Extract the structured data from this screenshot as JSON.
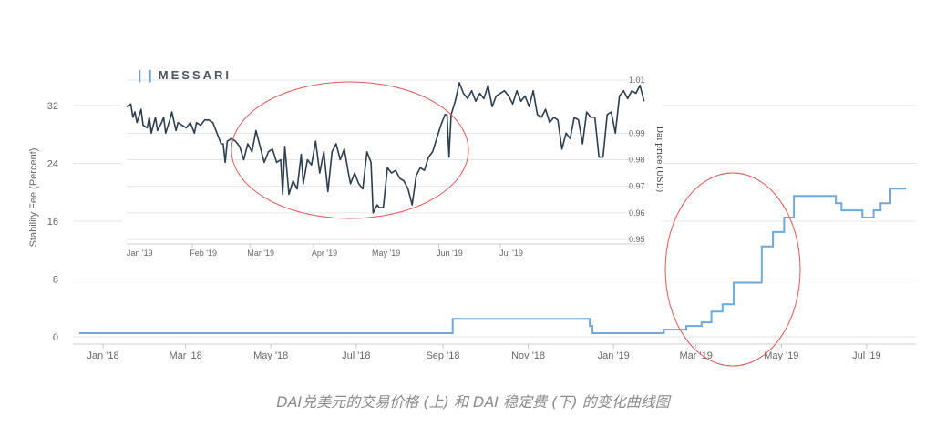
{
  "caption": "DAI兑美元的交易价格 (上) 和 DAI 稳定费 (下) 的变化曲线图",
  "logo": {
    "mark": "❘❙",
    "text": "MESSARI"
  },
  "colors": {
    "fee_line": "#6fa8dc",
    "price_line": "#2c3e50",
    "circle": "#e05555",
    "grid": "#e6e6e6",
    "tick_text": "#666666"
  },
  "chart_data": [
    {
      "type": "line",
      "title": "",
      "xlabel": "",
      "ylabel": "Stability Fee (Percent)",
      "ylim": [
        0,
        36
      ],
      "yticks": [
        0,
        8,
        16,
        24,
        32
      ],
      "grid": true,
      "x_tick_labels": [
        "Jan '18",
        "Mar '18",
        "May '18",
        "Jul '18",
        "Sep '18",
        "Nov '18",
        "Jan '19",
        "Mar '19",
        "May '19",
        "Jul '19"
      ],
      "series": [
        {
          "values": [
            [
              "2017-12-15",
              0.5
            ],
            [
              "2018-08-25",
              0.5
            ],
            [
              "2018-09-06",
              0.5
            ],
            [
              "2018-09-08",
              2.5
            ],
            [
              "2018-12-09",
              2.5
            ],
            [
              "2018-12-15",
              1.5
            ],
            [
              "2018-12-17",
              0.5
            ],
            [
              "2019-01-31",
              0.5
            ],
            [
              "2019-02-06",
              1.0
            ],
            [
              "2019-02-22",
              1.5
            ],
            [
              "2019-03-05",
              2.0
            ],
            [
              "2019-03-12",
              3.5
            ],
            [
              "2019-03-20",
              4.5
            ],
            [
              "2019-03-28",
              7.5
            ],
            [
              "2019-04-17",
              12.5
            ],
            [
              "2019-04-25",
              14.5
            ],
            [
              "2019-05-03",
              16.5
            ],
            [
              "2019-05-10",
              19.5
            ],
            [
              "2019-06-01",
              19.5
            ],
            [
              "2019-06-09",
              18.5
            ],
            [
              "2019-06-13",
              17.5
            ],
            [
              "2019-06-25",
              17.5
            ],
            [
              "2019-06-28",
              16.5
            ],
            [
              "2019-07-06",
              17.5
            ],
            [
              "2019-07-11",
              18.5
            ],
            [
              "2019-07-18",
              20.5
            ],
            [
              "2019-07-29",
              20.5
            ]
          ]
        }
      ]
    },
    {
      "type": "line",
      "title": "",
      "xlabel": "",
      "ylabel": "Dai price (USD)",
      "ylim": [
        0.947,
        1.012
      ],
      "yticks": [
        0.95,
        0.96,
        0.97,
        0.98,
        0.99,
        1.01
      ],
      "grid": true,
      "x_tick_labels": [
        "Jan '19",
        "Feb '19",
        "Mar '19",
        "Apr '19",
        "May '19",
        "Jun '19",
        "Jul '19"
      ],
      "series": [
        {
          "values": [
            [
              "2018-12-31",
              1.0
            ],
            [
              "2019-01-02",
              1.001
            ],
            [
              "2019-01-03",
              0.996
            ],
            [
              "2019-01-04",
              0.998
            ],
            [
              "2019-01-05",
              0.994
            ],
            [
              "2019-01-07",
              0.999
            ],
            [
              "2019-01-08",
              0.993
            ],
            [
              "2019-01-10",
              0.992
            ],
            [
              "2019-01-11",
              0.996
            ],
            [
              "2019-01-12",
              0.99
            ],
            [
              "2019-01-14",
              0.996
            ],
            [
              "2019-01-15",
              0.991
            ],
            [
              "2019-01-17",
              0.994
            ],
            [
              "2019-01-18",
              0.996
            ],
            [
              "2019-01-19",
              0.99
            ],
            [
              "2019-01-21",
              0.995
            ],
            [
              "2019-01-22",
              0.998
            ],
            [
              "2019-01-24",
              0.991
            ],
            [
              "2019-01-25",
              0.994
            ],
            [
              "2019-01-27",
              0.993
            ],
            [
              "2019-01-29",
              0.992
            ],
            [
              "2019-01-31",
              0.994
            ],
            [
              "2019-02-02",
              0.99
            ],
            [
              "2019-02-03",
              0.994
            ],
            [
              "2019-02-05",
              0.993
            ],
            [
              "2019-02-07",
              0.995
            ],
            [
              "2019-02-09",
              0.995
            ],
            [
              "2019-02-11",
              0.994
            ],
            [
              "2019-02-13",
              0.99
            ],
            [
              "2019-02-15",
              0.986
            ],
            [
              "2019-02-16",
              0.986
            ],
            [
              "2019-02-17",
              0.979
            ],
            [
              "2019-02-18",
              0.987
            ],
            [
              "2019-02-20",
              0.988
            ],
            [
              "2019-02-22",
              0.987
            ],
            [
              "2019-02-24",
              0.985
            ],
            [
              "2019-02-26",
              0.98
            ],
            [
              "2019-02-28",
              0.986
            ],
            [
              "2019-03-02",
              0.983
            ],
            [
              "2019-03-04",
              0.991
            ],
            [
              "2019-03-06",
              0.985
            ],
            [
              "2019-03-08",
              0.979
            ],
            [
              "2019-03-10",
              0.983
            ],
            [
              "2019-03-12",
              0.984
            ],
            [
              "2019-03-14",
              0.979
            ],
            [
              "2019-03-16",
              0.98
            ],
            [
              "2019-03-17",
              0.967
            ],
            [
              "2019-03-18",
              0.985
            ],
            [
              "2019-03-20",
              0.967
            ],
            [
              "2019-03-22",
              0.972
            ],
            [
              "2019-03-24",
              0.969
            ],
            [
              "2019-03-26",
              0.982
            ],
            [
              "2019-03-27",
              0.971
            ],
            [
              "2019-03-29",
              0.98
            ],
            [
              "2019-03-31",
              0.978
            ],
            [
              "2019-04-02",
              0.987
            ],
            [
              "2019-04-04",
              0.975
            ],
            [
              "2019-04-06",
              0.983
            ],
            [
              "2019-04-08",
              0.968
            ],
            [
              "2019-04-10",
              0.983
            ],
            [
              "2019-04-12",
              0.986
            ],
            [
              "2019-04-14",
              0.98
            ],
            [
              "2019-04-16",
              0.984
            ],
            [
              "2019-04-18",
              0.975
            ],
            [
              "2019-04-19",
              0.971
            ],
            [
              "2019-04-21",
              0.975
            ],
            [
              "2019-04-23",
              0.971
            ],
            [
              "2019-04-25",
              0.969
            ],
            [
              "2019-04-27",
              0.983
            ],
            [
              "2019-04-29",
              0.979
            ],
            [
              "2019-04-30",
              0.96
            ],
            [
              "2019-05-02",
              0.963
            ],
            [
              "2019-05-03",
              0.962
            ],
            [
              "2019-05-05",
              0.962
            ],
            [
              "2019-05-07",
              0.977
            ],
            [
              "2019-05-09",
              0.975
            ],
            [
              "2019-05-11",
              0.976
            ],
            [
              "2019-05-13",
              0.973
            ],
            [
              "2019-05-15",
              0.972
            ],
            [
              "2019-05-17",
              0.969
            ],
            [
              "2019-05-19",
              0.963
            ],
            [
              "2019-05-21",
              0.974
            ],
            [
              "2019-05-23",
              0.977
            ],
            [
              "2019-05-25",
              0.976
            ],
            [
              "2019-05-27",
              0.981
            ],
            [
              "2019-05-29",
              0.983
            ],
            [
              "2019-05-31",
              0.988
            ],
            [
              "2019-06-02",
              0.993
            ],
            [
              "2019-06-04",
              0.997
            ],
            [
              "2019-06-05",
              0.997
            ],
            [
              "2019-06-06",
              0.981
            ],
            [
              "2019-06-07",
              0.997
            ],
            [
              "2019-06-09",
              1.002
            ],
            [
              "2019-06-11",
              1.009
            ],
            [
              "2019-06-13",
              1.005
            ],
            [
              "2019-06-15",
              1.003
            ],
            [
              "2019-06-17",
              1.006
            ],
            [
              "2019-06-19",
              1.002
            ],
            [
              "2019-06-21",
              1.005
            ],
            [
              "2019-06-23",
              1.003
            ],
            [
              "2019-06-25",
              1.008
            ],
            [
              "2019-06-27",
              1.0
            ],
            [
              "2019-06-29",
              1.004
            ],
            [
              "2019-07-01",
              1.005
            ],
            [
              "2019-07-03",
              1.006
            ],
            [
              "2019-07-05",
              1.004
            ],
            [
              "2019-07-07",
              1.001
            ],
            [
              "2019-07-09",
              1.006
            ],
            [
              "2019-07-11",
              1.002
            ],
            [
              "2019-07-13",
              1.004
            ],
            [
              "2019-07-15",
              1.0
            ],
            [
              "2019-07-17",
              1.006
            ],
            [
              "2019-07-19",
              0.997
            ],
            [
              "2019-07-21",
              0.996
            ],
            [
              "2019-07-23",
              0.999
            ],
            [
              "2019-07-25",
              0.994
            ],
            [
              "2019-07-27",
              0.996
            ],
            [
              "2019-07-29",
              0.995
            ],
            [
              "2019-07-31",
              0.984
            ],
            [
              "2019-08-02",
              0.99
            ],
            [
              "2019-08-04",
              0.988
            ],
            [
              "2019-08-06",
              0.996
            ],
            [
              "2019-08-08",
              0.995
            ],
            [
              "2019-08-10",
              0.986
            ],
            [
              "2019-08-12",
              0.998
            ],
            [
              "2019-08-14",
              0.996
            ],
            [
              "2019-08-16",
              0.996
            ],
            [
              "2019-08-18",
              0.981
            ],
            [
              "2019-08-20",
              0.981
            ],
            [
              "2019-08-22",
              0.997
            ],
            [
              "2019-08-24",
              0.998
            ],
            [
              "2019-08-26",
              0.99
            ],
            [
              "2019-08-28",
              1.004
            ],
            [
              "2019-08-30",
              1.006
            ],
            [
              "2019-09-01",
              1.003
            ],
            [
              "2019-09-03",
              1.006
            ],
            [
              "2019-09-05",
              1.005
            ],
            [
              "2019-09-07",
              1.008
            ],
            [
              "2019-09-09",
              1.002
            ]
          ]
        }
      ]
    }
  ]
}
